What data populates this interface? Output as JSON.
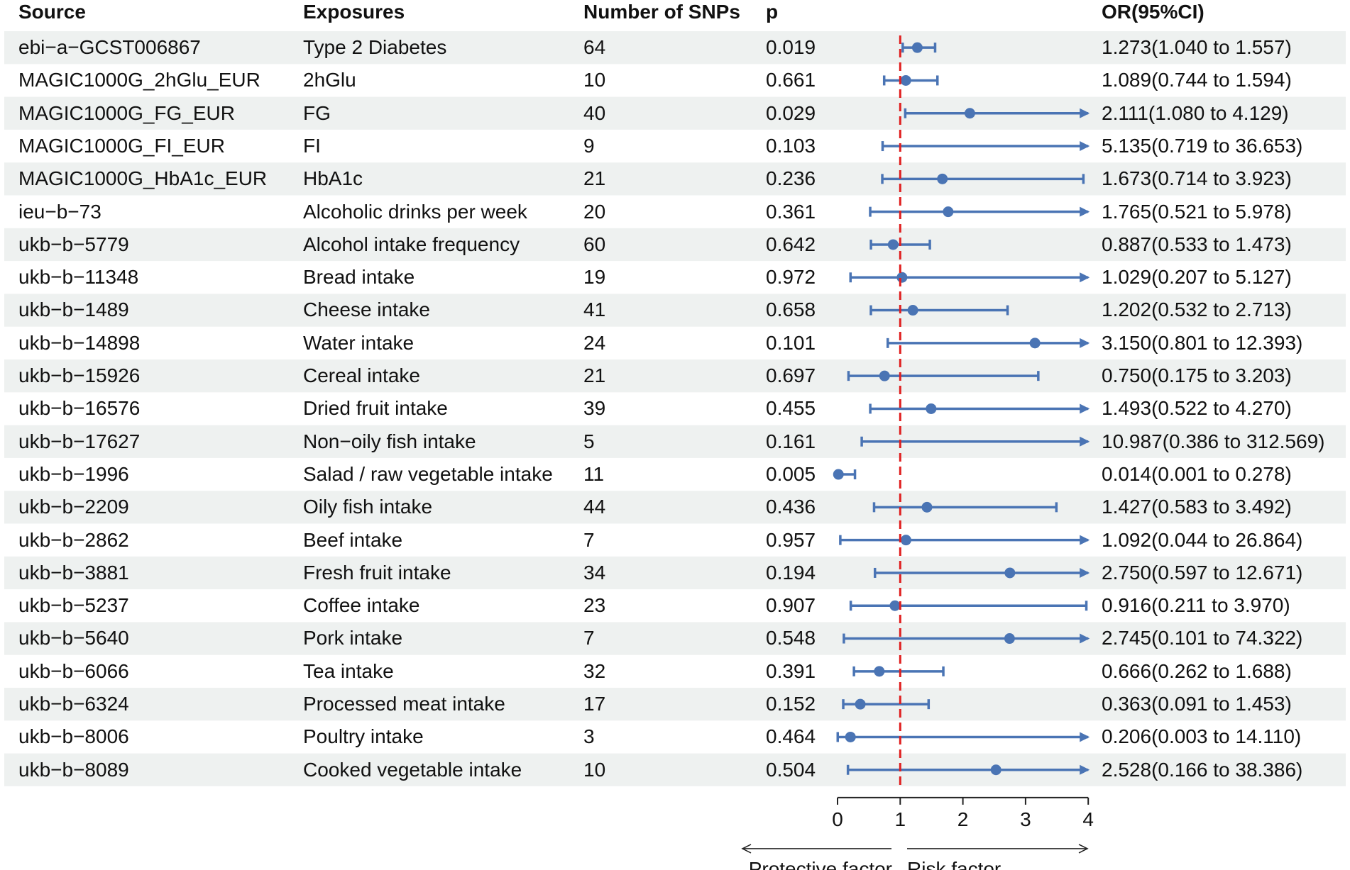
{
  "headers": {
    "source": "Source",
    "exposures": "Exposures",
    "nsnps": "Number of SNPs",
    "p": "p",
    "or": "OR(95%CI)"
  },
  "chart_data": {
    "type": "forest",
    "x_ticks": [
      "0",
      "1",
      "2",
      "3",
      "4"
    ],
    "xlim": [
      0,
      4
    ],
    "reference_line": 1,
    "annotation_left": "Protective factor",
    "annotation_right": "Risk factor",
    "colors": {
      "point": "#4a74b4",
      "ref_line": "#e02020",
      "stripe": "#eef1f0"
    },
    "rows": [
      {
        "source": "ebi−a−GCST006867",
        "exposure": "Type 2 Diabetes",
        "nsnp": "64",
        "p": "0.019",
        "or_text": "1.273(1.040 to 1.557)",
        "or": 1.273,
        "lo": 1.04,
        "hi": 1.557
      },
      {
        "source": "MAGIC1000G_2hGlu_EUR",
        "exposure": "2hGlu",
        "nsnp": "10",
        "p": "0.661",
        "or_text": "1.089(0.744 to 1.594)",
        "or": 1.089,
        "lo": 0.744,
        "hi": 1.594
      },
      {
        "source": "MAGIC1000G_FG_EUR",
        "exposure": "FG",
        "nsnp": "40",
        "p": "0.029",
        "or_text": "2.111(1.080 to 4.129)",
        "or": 2.111,
        "lo": 1.08,
        "hi": 4.129
      },
      {
        "source": "MAGIC1000G_FI_EUR",
        "exposure": "FI",
        "nsnp": "9",
        "p": "0.103",
        "or_text": "5.135(0.719 to 36.653)",
        "or": 5.135,
        "lo": 0.719,
        "hi": 36.653
      },
      {
        "source": "MAGIC1000G_HbA1c_EUR",
        "exposure": "HbA1c",
        "nsnp": "21",
        "p": "0.236",
        "or_text": "1.673(0.714 to 3.923)",
        "or": 1.673,
        "lo": 0.714,
        "hi": 3.923
      },
      {
        "source": "ieu−b−73",
        "exposure": "Alcoholic drinks per week",
        "nsnp": "20",
        "p": "0.361",
        "or_text": "1.765(0.521 to 5.978)",
        "or": 1.765,
        "lo": 0.521,
        "hi": 5.978
      },
      {
        "source": "ukb−b−5779",
        "exposure": "Alcohol intake frequency",
        "nsnp": "60",
        "p": "0.642",
        "or_text": "0.887(0.533 to 1.473)",
        "or": 0.887,
        "lo": 0.533,
        "hi": 1.473
      },
      {
        "source": "ukb−b−11348",
        "exposure": "Bread intake",
        "nsnp": "19",
        "p": "0.972",
        "or_text": "1.029(0.207 to 5.127)",
        "or": 1.029,
        "lo": 0.207,
        "hi": 5.127
      },
      {
        "source": "ukb−b−1489",
        "exposure": "Cheese intake",
        "nsnp": "41",
        "p": "0.658",
        "or_text": "1.202(0.532 to 2.713)",
        "or": 1.202,
        "lo": 0.532,
        "hi": 2.713
      },
      {
        "source": "ukb−b−14898",
        "exposure": "Water intake",
        "nsnp": "24",
        "p": "0.101",
        "or_text": "3.150(0.801 to 12.393)",
        "or": 3.15,
        "lo": 0.801,
        "hi": 12.393
      },
      {
        "source": "ukb−b−15926",
        "exposure": "Cereal intake",
        "nsnp": "21",
        "p": "0.697",
        "or_text": "0.750(0.175 to 3.203)",
        "or": 0.75,
        "lo": 0.175,
        "hi": 3.203
      },
      {
        "source": "ukb−b−16576",
        "exposure": "Dried fruit intake",
        "nsnp": "39",
        "p": "0.455",
        "or_text": "1.493(0.522 to 4.270)",
        "or": 1.493,
        "lo": 0.522,
        "hi": 4.27
      },
      {
        "source": "ukb−b−17627",
        "exposure": "Non−oily fish intake",
        "nsnp": "5",
        "p": "0.161",
        "or_text": "10.987(0.386 to 312.569)",
        "or": 10.987,
        "lo": 0.386,
        "hi": 312.569
      },
      {
        "source": "ukb−b−1996",
        "exposure": "Salad / raw vegetable intake",
        "nsnp": "11",
        "p": "0.005",
        "or_text": "0.014(0.001 to 0.278)",
        "or": 0.014,
        "lo": 0.001,
        "hi": 0.278
      },
      {
        "source": "ukb−b−2209",
        "exposure": "Oily fish intake",
        "nsnp": "44",
        "p": "0.436",
        "or_text": "1.427(0.583 to 3.492)",
        "or": 1.427,
        "lo": 0.583,
        "hi": 3.492
      },
      {
        "source": "ukb−b−2862",
        "exposure": "Beef intake",
        "nsnp": "7",
        "p": "0.957",
        "or_text": "1.092(0.044 to 26.864)",
        "or": 1.092,
        "lo": 0.044,
        "hi": 26.864
      },
      {
        "source": "ukb−b−3881",
        "exposure": "Fresh fruit intake",
        "nsnp": "34",
        "p": "0.194",
        "or_text": "2.750(0.597 to 12.671)",
        "or": 2.75,
        "lo": 0.597,
        "hi": 12.671
      },
      {
        "source": "ukb−b−5237",
        "exposure": "Coffee intake",
        "nsnp": "23",
        "p": "0.907",
        "or_text": "0.916(0.211 to 3.970)",
        "or": 0.916,
        "lo": 0.211,
        "hi": 3.97
      },
      {
        "source": "ukb−b−5640",
        "exposure": "Pork intake",
        "nsnp": "7",
        "p": "0.548",
        "or_text": "2.745(0.101 to 74.322)",
        "or": 2.745,
        "lo": 0.101,
        "hi": 74.322
      },
      {
        "source": "ukb−b−6066",
        "exposure": "Tea intake",
        "nsnp": "32",
        "p": "0.391",
        "or_text": "0.666(0.262 to 1.688)",
        "or": 0.666,
        "lo": 0.262,
        "hi": 1.688
      },
      {
        "source": "ukb−b−6324",
        "exposure": "Processed meat intake",
        "nsnp": "17",
        "p": "0.152",
        "or_text": "0.363(0.091 to 1.453)",
        "or": 0.363,
        "lo": 0.091,
        "hi": 1.453
      },
      {
        "source": "ukb−b−8006",
        "exposure": "Poultry intake",
        "nsnp": "3",
        "p": "0.464",
        "or_text": "0.206(0.003 to 14.110)",
        "or": 0.206,
        "lo": 0.003,
        "hi": 14.11
      },
      {
        "source": "ukb−b−8089",
        "exposure": "Cooked vegetable intake",
        "nsnp": "10",
        "p": "0.504",
        "or_text": "2.528(0.166 to 38.386)",
        "or": 2.528,
        "lo": 0.166,
        "hi": 38.386
      }
    ]
  }
}
